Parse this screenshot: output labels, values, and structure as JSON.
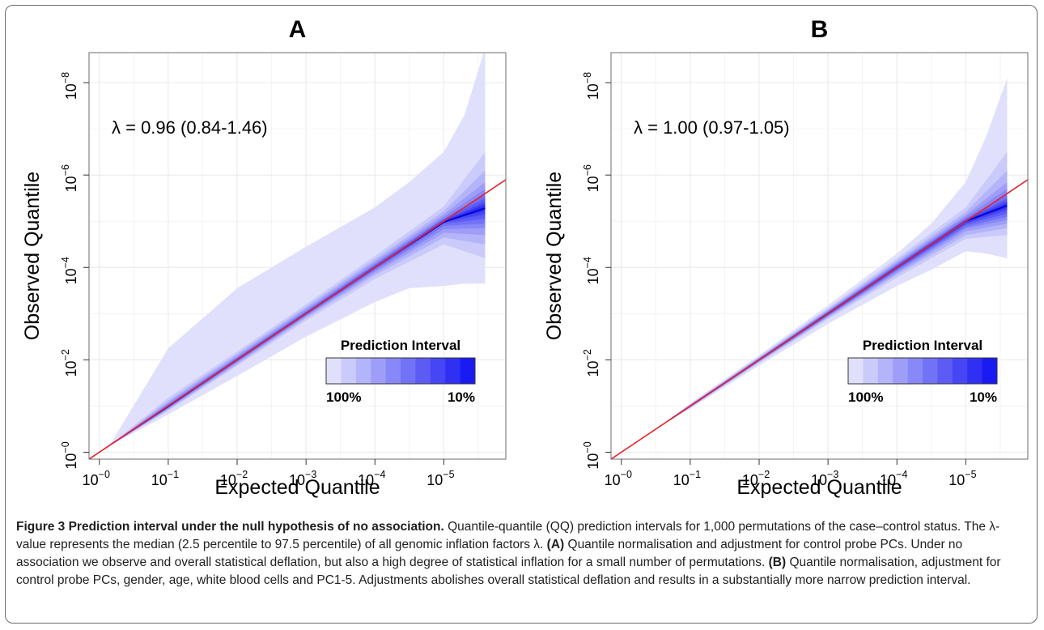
{
  "colors": {
    "band_light": "#e0e0fc",
    "band_dark": "#1a1af2",
    "reference_line": "#e8202a",
    "median_line": "#0000cc",
    "grid": "#ececec",
    "frame": "#6b6b6b"
  },
  "chart_data": [
    {
      "type": "area",
      "panel_label": "A",
      "lambda_text": "λ = 0.96 (0.84-1.46)",
      "xlabel": "Expected Quantile",
      "ylabel": "Observed Quantile",
      "x_scale": "-log10",
      "y_scale": "-log10",
      "xlim": [
        -0.15,
        5.9
      ],
      "ylim": [
        -0.15,
        8.65
      ],
      "xticks": [
        0,
        1,
        2,
        3,
        4,
        5
      ],
      "xtick_labels": [
        [
          "10",
          "−0"
        ],
        [
          "10",
          "−1"
        ],
        [
          "10",
          "−2"
        ],
        [
          "10",
          "−3"
        ],
        [
          "10",
          "−4"
        ],
        [
          "10",
          "−5"
        ]
      ],
      "yticks": [
        0,
        2,
        4,
        6,
        8
      ],
      "ytick_labels": [
        [
          "10",
          "−0"
        ],
        [
          "10",
          "−2"
        ],
        [
          "10",
          "−4"
        ],
        [
          "10",
          "−6"
        ],
        [
          "10",
          "−8"
        ]
      ],
      "grid": true,
      "reference_line": {
        "slope": 1.0,
        "intercept": 0
      },
      "prediction_intervals": [
        {
          "level": "100%",
          "x": [
            0.15,
            1,
            2,
            3,
            4,
            4.5,
            5,
            5.3,
            5.6,
            5.6,
            5.3,
            5,
            4.5,
            4,
            3,
            2,
            1,
            0.15
          ],
          "y": [
            0.15,
            2.25,
            3.55,
            4.45,
            5.3,
            5.85,
            6.5,
            7.3,
            8.75,
            3.65,
            3.65,
            3.6,
            3.55,
            3.25,
            2.5,
            1.65,
            0.82,
            0.14
          ]
        },
        {
          "level": "90%",
          "x": [
            0.15,
            1,
            2,
            3,
            4,
            5,
            5.6,
            5.6,
            5,
            4,
            3,
            2,
            1,
            0.15
          ],
          "y": [
            0.15,
            1.18,
            2.18,
            3.2,
            4.25,
            5.32,
            6.5,
            4.2,
            4.5,
            3.75,
            2.85,
            1.87,
            0.9,
            0.14
          ]
        },
        {
          "level": "80%",
          "x": [
            0.15,
            1,
            2,
            3,
            4,
            5,
            5.6,
            5.6,
            5,
            4,
            3,
            2,
            1,
            0.15
          ],
          "y": [
            0.15,
            1.12,
            2.13,
            3.15,
            4.18,
            5.22,
            6.1,
            4.5,
            4.65,
            3.83,
            2.9,
            1.9,
            0.92,
            0.14
          ]
        },
        {
          "level": "70%",
          "x": [
            0.15,
            1,
            2,
            3,
            4,
            5,
            5.6,
            5.6,
            5,
            4,
            3,
            2,
            1,
            0.15
          ],
          "y": [
            0.15,
            1.08,
            2.09,
            3.11,
            4.13,
            5.15,
            5.85,
            4.7,
            4.75,
            3.88,
            2.93,
            1.93,
            0.94,
            0.14
          ]
        },
        {
          "level": "60%",
          "x": [
            0.15,
            1,
            2,
            3,
            4,
            5,
            5.6,
            5.6,
            5,
            4,
            3,
            2,
            1,
            0.15
          ],
          "y": [
            0.15,
            1.05,
            2.06,
            3.07,
            4.09,
            5.1,
            5.7,
            4.85,
            4.83,
            3.92,
            2.95,
            1.95,
            0.95,
            0.14
          ]
        },
        {
          "level": "50%",
          "x": [
            0.15,
            1,
            2,
            3,
            4,
            5,
            5.6,
            5.6,
            5,
            4,
            3,
            2,
            1,
            0.15
          ],
          "y": [
            0.15,
            1.03,
            2.04,
            3.05,
            4.06,
            5.06,
            5.58,
            4.95,
            4.9,
            3.95,
            2.97,
            1.97,
            0.97,
            0.14
          ]
        },
        {
          "level": "40%",
          "x": [
            0.15,
            1,
            2,
            3,
            4,
            5,
            5.6,
            5.6,
            5,
            4,
            3,
            2,
            1,
            0.15
          ],
          "y": [
            0.15,
            1.02,
            2.03,
            3.03,
            4.04,
            5.04,
            5.5,
            5.05,
            4.95,
            3.97,
            2.98,
            1.98,
            0.98,
            0.14
          ]
        },
        {
          "level": "30%",
          "x": [
            0.15,
            1,
            2,
            3,
            4,
            5,
            5.6,
            5.6,
            5,
            4,
            3,
            2,
            1,
            0.15
          ],
          "y": [
            0.15,
            1.01,
            2.02,
            3.02,
            4.02,
            5.02,
            5.42,
            5.15,
            4.98,
            3.99,
            2.99,
            1.99,
            0.99,
            0.14
          ]
        },
        {
          "level": "20%",
          "x": [
            0.15,
            1,
            2,
            3,
            4,
            5,
            5.6,
            5.6,
            5,
            4,
            3,
            2,
            1,
            0.15
          ],
          "y": [
            0.15,
            1.0,
            2.01,
            3.01,
            4.01,
            5.01,
            5.36,
            5.22,
            5.0,
            4.0,
            3.0,
            2.0,
            0.995,
            0.14
          ]
        },
        {
          "level": "10%",
          "x": [
            0.15,
            1,
            2,
            3,
            4,
            5,
            5.6,
            5.6,
            5,
            4,
            3,
            2,
            1,
            0.15
          ],
          "y": [
            0.15,
            0.995,
            2.0,
            3.0,
            4.0,
            5.0,
            5.31,
            5.27,
            5.0,
            4.0,
            3.0,
            2.0,
            0.99,
            0.14
          ]
        }
      ],
      "median": {
        "x": [
          0.15,
          1,
          2,
          3,
          4,
          5,
          5.6
        ],
        "y": [
          0.15,
          0.99,
          2.0,
          3.0,
          4.0,
          4.98,
          5.28
        ]
      },
      "legend": {
        "title": "Prediction Interval",
        "low_label": "100%",
        "high_label": "10%",
        "steps": 10,
        "placement": "bottom-right"
      }
    },
    {
      "type": "area",
      "panel_label": "B",
      "lambda_text": "λ = 1.00 (0.97-1.05)",
      "xlabel": "Expected Quantile",
      "ylabel": "Observed Quantile",
      "x_scale": "-log10",
      "y_scale": "-log10",
      "xlim": [
        -0.15,
        5.9
      ],
      "ylim": [
        -0.15,
        8.65
      ],
      "xticks": [
        0,
        1,
        2,
        3,
        4,
        5
      ],
      "xtick_labels": [
        [
          "10",
          "−0"
        ],
        [
          "10",
          "−1"
        ],
        [
          "10",
          "−2"
        ],
        [
          "10",
          "−3"
        ],
        [
          "10",
          "−4"
        ],
        [
          "10",
          "−5"
        ]
      ],
      "yticks": [
        0,
        2,
        4,
        6,
        8
      ],
      "ytick_labels": [
        [
          "10",
          "−0"
        ],
        [
          "10",
          "−2"
        ],
        [
          "10",
          "−4"
        ],
        [
          "10",
          "−6"
        ],
        [
          "10",
          "−8"
        ]
      ],
      "grid": true,
      "reference_line": {
        "slope": 1.0,
        "intercept": 0
      },
      "prediction_intervals": [
        {
          "level": "100%",
          "x": [
            0.7,
            1,
            2,
            3,
            4,
            4.5,
            5,
            5.3,
            5.6,
            5.6,
            5.3,
            5,
            4.5,
            4,
            3,
            2,
            1,
            0.7
          ],
          "y": [
            0.72,
            1.06,
            2.1,
            3.18,
            4.3,
            4.95,
            5.85,
            6.85,
            8.1,
            4.2,
            4.3,
            4.35,
            3.95,
            3.6,
            2.78,
            1.88,
            0.94,
            0.68
          ]
        },
        {
          "level": "90%",
          "x": [
            0.7,
            1,
            2,
            3,
            4,
            5,
            5.6,
            5.6,
            5,
            4,
            3,
            2,
            1,
            0.7
          ],
          "y": [
            0.71,
            1.04,
            2.07,
            3.12,
            4.2,
            5.3,
            6.5,
            4.7,
            4.62,
            3.78,
            2.88,
            1.93,
            0.96,
            0.69
          ]
        },
        {
          "level": "80%",
          "x": [
            0.7,
            1,
            2,
            3,
            4,
            5,
            5.6,
            5.6,
            5,
            4,
            3,
            2,
            1,
            0.7
          ],
          "y": [
            0.71,
            1.03,
            2.05,
            3.09,
            4.15,
            5.2,
            6.1,
            4.85,
            4.7,
            3.84,
            2.91,
            1.95,
            0.97,
            0.69
          ]
        },
        {
          "level": "70%",
          "x": [
            0.7,
            1,
            2,
            3,
            4,
            5,
            5.6,
            5.6,
            5,
            4,
            3,
            2,
            1,
            0.7
          ],
          "y": [
            0.705,
            1.02,
            2.04,
            3.07,
            4.11,
            5.14,
            5.85,
            4.95,
            4.78,
            3.88,
            2.93,
            1.96,
            0.975,
            0.695
          ]
        },
        {
          "level": "60%",
          "x": [
            0.7,
            1,
            2,
            3,
            4,
            5,
            5.6,
            5.6,
            5,
            4,
            3,
            2,
            1,
            0.7
          ],
          "y": [
            0.705,
            1.015,
            2.03,
            3.05,
            4.08,
            5.1,
            5.7,
            5.03,
            4.84,
            3.91,
            2.95,
            1.97,
            0.98,
            0.695
          ]
        },
        {
          "level": "50%",
          "x": [
            0.7,
            1,
            2,
            3,
            4,
            5,
            5.6,
            5.6,
            5,
            4,
            3,
            2,
            1,
            0.7
          ],
          "y": [
            0.703,
            1.01,
            2.02,
            3.04,
            4.06,
            5.06,
            5.58,
            5.1,
            4.88,
            3.94,
            2.96,
            1.98,
            0.985,
            0.697
          ]
        },
        {
          "level": "40%",
          "x": [
            0.7,
            1,
            2,
            3,
            4,
            5,
            5.6,
            5.6,
            5,
            4,
            3,
            2,
            1,
            0.7
          ],
          "y": [
            0.702,
            1.008,
            2.015,
            3.03,
            4.04,
            5.04,
            5.5,
            5.17,
            4.92,
            3.96,
            2.97,
            1.985,
            0.99,
            0.698
          ]
        },
        {
          "level": "30%",
          "x": [
            0.7,
            1,
            2,
            3,
            4,
            5,
            5.6,
            5.6,
            5,
            4,
            3,
            2,
            1,
            0.7
          ],
          "y": [
            0.701,
            1.005,
            2.01,
            3.02,
            4.025,
            5.03,
            5.44,
            5.24,
            4.95,
            3.975,
            2.98,
            1.99,
            0.995,
            0.699
          ]
        },
        {
          "level": "20%",
          "x": [
            0.7,
            1,
            2,
            3,
            4,
            5,
            5.6,
            5.6,
            5,
            4,
            3,
            2,
            1,
            0.7
          ],
          "y": [
            0.7,
            1.003,
            2.005,
            3.01,
            4.015,
            5.02,
            5.39,
            5.29,
            4.98,
            3.985,
            2.99,
            1.995,
            0.997,
            0.7
          ]
        },
        {
          "level": "10%",
          "x": [
            0.7,
            1,
            2,
            3,
            4,
            5,
            5.6,
            5.6,
            5,
            4,
            3,
            2,
            1,
            0.7
          ],
          "y": [
            0.7,
            1.001,
            2.002,
            3.005,
            4.008,
            5.01,
            5.36,
            5.32,
            4.99,
            3.992,
            2.995,
            1.998,
            0.999,
            0.7
          ]
        }
      ],
      "median": {
        "x": [
          0.7,
          1,
          2,
          3,
          4,
          5,
          5.6
        ],
        "y": [
          0.7,
          1.0,
          2.0,
          3.0,
          4.0,
          5.0,
          5.34
        ]
      },
      "legend": {
        "title": "Prediction Interval",
        "low_label": "100%",
        "high_label": "10%",
        "steps": 10,
        "placement": "bottom-right"
      }
    }
  ],
  "caption": {
    "title": "Figure 3 Prediction interval under the null hypothesis of no association.",
    "part1": " Quantile-quantile (QQ) prediction intervals for 1,000 permutations of the case–control status. The λ-value represents the median (2.5 percentile to 97.5 percentile) of all genomic inflation factors λ. ",
    "tag_a": "(A)",
    "part2": " Quantile normalisation and adjustment for control probe PCs. Under no association we observe and overall statistical deflation, but also a high degree of statistical inflation for a small number of permutations. ",
    "tag_b": "(B)",
    "part3": " Quantile normalisation, adjustment for control probe PCs, gender, age, white blood cells and PC1-5. Adjustments abolishes overall statistical deflation and results in a substantially more narrow prediction interval."
  }
}
